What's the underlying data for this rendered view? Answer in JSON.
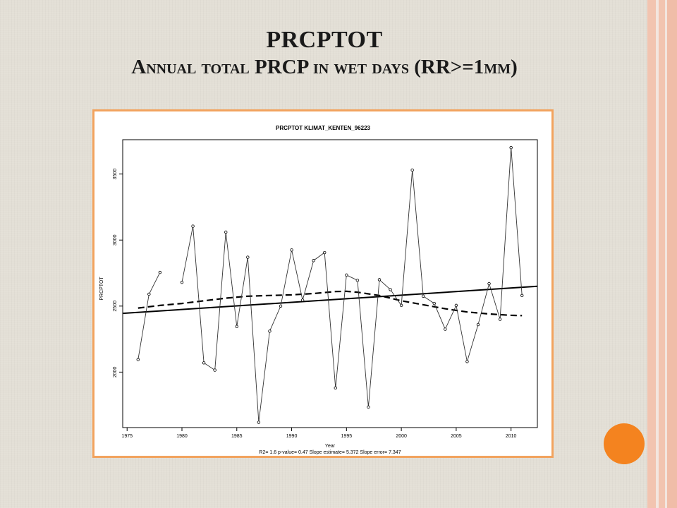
{
  "slide": {
    "title": "PRCPTOT",
    "subtitle": "Annual total PRCP in wet days (RR>=1mm)"
  },
  "colors": {
    "background": "#e3dfd6",
    "frame_border": "#f2a35e",
    "accent_dot": "#f4831f",
    "side_band": "#f2c4b0"
  },
  "chart_data": {
    "type": "line",
    "title": "PRCPTOT   KLIMAT_KENTEN_96223",
    "xlabel": "Year",
    "ylabel": "PRCPTOT",
    "footer": "R2= 1.6  p-value= 0.47  Slope estimate= 5.372  Slope error= 7.347",
    "xlim": [
      1974.6,
      2012.4
    ],
    "ylim": [
      1580,
      3760
    ],
    "xticks": [
      1975,
      1980,
      1985,
      1990,
      1995,
      2000,
      2005,
      2010
    ],
    "yticks": [
      2000,
      2500,
      3000,
      3500
    ],
    "grid": false,
    "legend": "none",
    "series": [
      {
        "style": "points-lines",
        "x": [
          1976,
          1977,
          1978,
          1980,
          1981,
          1982,
          1983,
          1984,
          1985,
          1986,
          1987,
          1988,
          1989,
          1990,
          1991,
          1992,
          1993,
          1994,
          1995,
          1996,
          1997,
          1998,
          1999,
          2000,
          2001,
          2002,
          2003,
          2004,
          2005,
          2006,
          2007,
          2008,
          2009,
          2010,
          2011
        ],
        "y": [
          2095,
          2590,
          2755,
          2680,
          3105,
          2070,
          2015,
          3060,
          2345,
          2870,
          1620,
          2310,
          2500,
          2925,
          2545,
          2845,
          2905,
          1880,
          2735,
          2695,
          1735,
          2700,
          2625,
          2505,
          3530,
          2575,
          2520,
          2325,
          2505,
          2080,
          2360,
          2670,
          2400,
          3700,
          2580
        ],
        "gap_after_index": 2
      },
      {
        "style": "trend-line-solid",
        "x": [
          1974.6,
          2012.4
        ],
        "y": [
          2445,
          2650
        ]
      },
      {
        "style": "smoothed-dashed",
        "x": [
          1976,
          1978,
          1980,
          1982,
          1984,
          1986,
          1988,
          1990,
          1992,
          1994,
          1995,
          1996,
          1998,
          2000,
          2002,
          2004,
          2006,
          2008,
          2010,
          2011
        ],
        "y": [
          2485,
          2505,
          2520,
          2540,
          2560,
          2575,
          2580,
          2585,
          2595,
          2610,
          2612,
          2605,
          2580,
          2540,
          2510,
          2480,
          2455,
          2440,
          2430,
          2428
        ]
      }
    ]
  }
}
